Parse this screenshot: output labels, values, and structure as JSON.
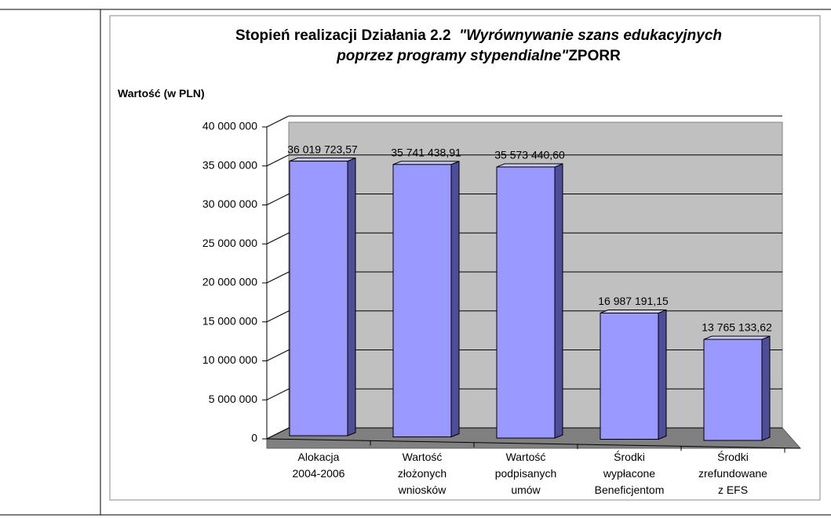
{
  "chart_data": {
    "type": "bar3d",
    "title": "Stopień realizacji Działania 2.2",
    "title_quote": "\"Wyrównywanie szans edukacyjnych poprzez programy stypendialne\"",
    "title_suffix": "ZPORR",
    "y_label": "Wartość (w PLN)",
    "categories": [
      [
        "Alokacja",
        "2004-2006"
      ],
      [
        "Wartość",
        "złożonych",
        "wniosków"
      ],
      [
        "Wartość",
        "podpisanych",
        "umów"
      ],
      [
        "Środki",
        "wypłacone",
        "Beneficjentom"
      ],
      [
        "Środki",
        "zrefundowane",
        "z EFS"
      ]
    ],
    "values": [
      36019723.57,
      35741438.91,
      35573440.6,
      16987191.15,
      13765133.62
    ],
    "value_labels": [
      "36 019 723,57",
      "35 741 438,91",
      "35 573 440,60",
      "16 987 191,15",
      "13 765 133,62"
    ],
    "color": "#9999ff",
    "ylim": [
      0,
      40000000
    ],
    "yticks": [
      {
        "value": 0,
        "label": "0"
      },
      {
        "value": 5000000,
        "label": "5 000 000"
      },
      {
        "value": 10000000,
        "label": "10 000 000"
      },
      {
        "value": 15000000,
        "label": "15 000 000"
      },
      {
        "value": 20000000,
        "label": "20 000 000"
      },
      {
        "value": 25000000,
        "label": "25 000 000"
      },
      {
        "value": 30000000,
        "label": "30 000 000"
      },
      {
        "value": 35000000,
        "label": "35 000 000"
      },
      {
        "value": 40000000,
        "label": "40 000 000"
      }
    ],
    "grid": true
  }
}
